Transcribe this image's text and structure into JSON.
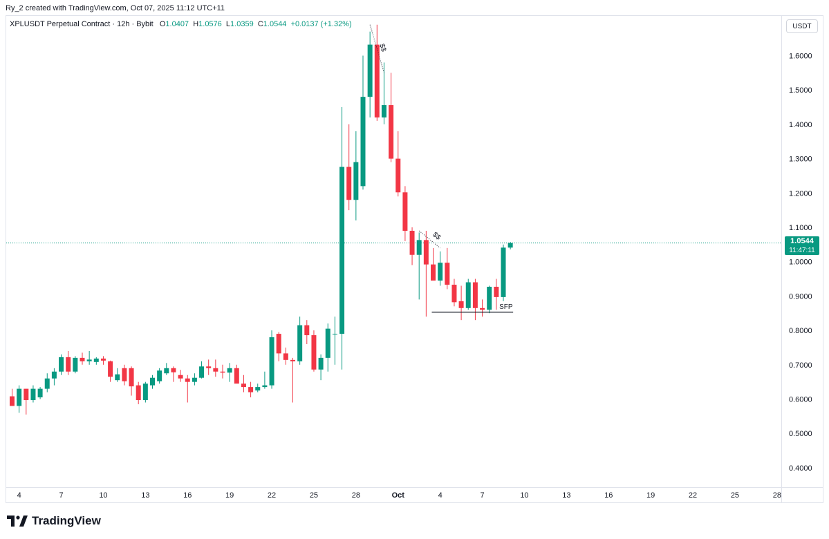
{
  "caption": "Ry_2 created with TradingView.com, Oct 07, 2025 11:12 UTC+11",
  "legend": {
    "symbol": "XPLUSDT Perpetual Contract · 12h · Bybit",
    "o_label": "O",
    "o_value": "1.0407",
    "h_label": "H",
    "h_value": "1.0576",
    "l_label": "L",
    "l_value": "1.0359",
    "c_label": "C",
    "c_value": "1.0544",
    "change": "+0.0137 (+1.32%)"
  },
  "currency": "USDT",
  "price_tag": {
    "price": "1.0544",
    "countdown": "11:47:11"
  },
  "brand": "TradingView",
  "colors": {
    "up": "#089981",
    "down": "#f23645",
    "text": "#131722",
    "grid": "#e0e3eb"
  },
  "chart_data": {
    "type": "candlestick",
    "y_axis": {
      "ticks": [
        0.4,
        0.5,
        0.6,
        0.7,
        0.8,
        0.9,
        1.0,
        1.1,
        1.2,
        1.3,
        1.4,
        1.5,
        1.6
      ],
      "tick_labels": [
        "0.4000",
        "0.5000",
        "0.6000",
        "0.7000",
        "0.8000",
        "0.9000",
        "1.0000",
        "1.1000",
        "1.2000",
        "1.3000",
        "1.4000",
        "1.5000",
        "1.6000"
      ],
      "range": [
        0.36,
        1.7
      ]
    },
    "x_axis": {
      "tick_labels": [
        "4",
        "7",
        "10",
        "13",
        "16",
        "19",
        "22",
        "25",
        "28",
        "Oct",
        "4",
        "7",
        "10",
        "13",
        "16",
        "19",
        "22",
        "25",
        "28"
      ],
      "tick_positions": [
        1,
        7,
        13,
        19,
        25,
        31,
        37,
        43,
        49,
        55,
        61,
        67,
        73,
        79,
        85,
        91,
        97,
        103,
        109
      ]
    },
    "last_price": 1.0544,
    "candles": [
      {
        "o": 0.608,
        "h": 0.63,
        "l": 0.58,
        "c": 0.58
      },
      {
        "o": 0.58,
        "h": 0.64,
        "l": 0.56,
        "c": 0.63
      },
      {
        "o": 0.63,
        "h": 0.63,
        "l": 0.555,
        "c": 0.597
      },
      {
        "o": 0.597,
        "h": 0.64,
        "l": 0.59,
        "c": 0.63
      },
      {
        "o": 0.605,
        "h": 0.635,
        "l": 0.6,
        "c": 0.63
      },
      {
        "o": 0.63,
        "h": 0.675,
        "l": 0.62,
        "c": 0.66
      },
      {
        "o": 0.66,
        "h": 0.69,
        "l": 0.64,
        "c": 0.68
      },
      {
        "o": 0.68,
        "h": 0.73,
        "l": 0.67,
        "c": 0.722
      },
      {
        "o": 0.722,
        "h": 0.74,
        "l": 0.67,
        "c": 0.68
      },
      {
        "o": 0.68,
        "h": 0.725,
        "l": 0.675,
        "c": 0.72
      },
      {
        "o": 0.72,
        "h": 0.735,
        "l": 0.7,
        "c": 0.71
      },
      {
        "o": 0.71,
        "h": 0.74,
        "l": 0.7,
        "c": 0.715
      },
      {
        "o": 0.708,
        "h": 0.722,
        "l": 0.7,
        "c": 0.718
      },
      {
        "o": 0.718,
        "h": 0.725,
        "l": 0.7,
        "c": 0.712
      },
      {
        "o": 0.71,
        "h": 0.712,
        "l": 0.65,
        "c": 0.665
      },
      {
        "o": 0.655,
        "h": 0.69,
        "l": 0.65,
        "c": 0.672
      },
      {
        "o": 0.69,
        "h": 0.7,
        "l": 0.64,
        "c": 0.652
      },
      {
        "o": 0.69,
        "h": 0.695,
        "l": 0.61,
        "c": 0.637
      },
      {
        "o": 0.64,
        "h": 0.65,
        "l": 0.585,
        "c": 0.597
      },
      {
        "o": 0.597,
        "h": 0.65,
        "l": 0.59,
        "c": 0.645
      },
      {
        "o": 0.64,
        "h": 0.67,
        "l": 0.63,
        "c": 0.662
      },
      {
        "o": 0.652,
        "h": 0.69,
        "l": 0.645,
        "c": 0.683
      },
      {
        "o": 0.675,
        "h": 0.705,
        "l": 0.67,
        "c": 0.69
      },
      {
        "o": 0.69,
        "h": 0.695,
        "l": 0.65,
        "c": 0.678
      },
      {
        "o": 0.67,
        "h": 0.685,
        "l": 0.65,
        "c": 0.66
      },
      {
        "o": 0.66,
        "h": 0.67,
        "l": 0.59,
        "c": 0.65
      },
      {
        "o": 0.65,
        "h": 0.675,
        "l": 0.64,
        "c": 0.662
      },
      {
        "o": 0.662,
        "h": 0.71,
        "l": 0.66,
        "c": 0.695
      },
      {
        "o": 0.695,
        "h": 0.715,
        "l": 0.67,
        "c": 0.69
      },
      {
        "o": 0.69,
        "h": 0.715,
        "l": 0.665,
        "c": 0.68
      },
      {
        "o": 0.68,
        "h": 0.7,
        "l": 0.66,
        "c": 0.677
      },
      {
        "o": 0.677,
        "h": 0.705,
        "l": 0.65,
        "c": 0.69
      },
      {
        "o": 0.69,
        "h": 0.7,
        "l": 0.65,
        "c": 0.645
      },
      {
        "o": 0.645,
        "h": 0.67,
        "l": 0.62,
        "c": 0.635
      },
      {
        "o": 0.635,
        "h": 0.65,
        "l": 0.605,
        "c": 0.62
      },
      {
        "o": 0.625,
        "h": 0.645,
        "l": 0.62,
        "c": 0.635
      },
      {
        "o": 0.635,
        "h": 0.68,
        "l": 0.63,
        "c": 0.64
      },
      {
        "o": 0.64,
        "h": 0.8,
        "l": 0.63,
        "c": 0.78
      },
      {
        "o": 0.79,
        "h": 0.795,
        "l": 0.71,
        "c": 0.733
      },
      {
        "o": 0.733,
        "h": 0.75,
        "l": 0.7,
        "c": 0.714
      },
      {
        "o": 0.714,
        "h": 0.72,
        "l": 0.59,
        "c": 0.71
      },
      {
        "o": 0.71,
        "h": 0.84,
        "l": 0.7,
        "c": 0.815
      },
      {
        "o": 0.815,
        "h": 0.83,
        "l": 0.76,
        "c": 0.786
      },
      {
        "o": 0.786,
        "h": 0.8,
        "l": 0.68,
        "c": 0.686
      },
      {
        "o": 0.686,
        "h": 0.73,
        "l": 0.655,
        "c": 0.72
      },
      {
        "o": 0.72,
        "h": 0.82,
        "l": 0.68,
        "c": 0.805
      },
      {
        "o": 0.79,
        "h": 0.84,
        "l": 0.7,
        "c": 0.79
      },
      {
        "o": 0.79,
        "h": 1.45,
        "l": 0.686,
        "c": 1.276
      },
      {
        "o": 1.276,
        "h": 1.4,
        "l": 1.15,
        "c": 1.18
      },
      {
        "o": 1.18,
        "h": 1.38,
        "l": 1.12,
        "c": 1.29
      },
      {
        "o": 1.22,
        "h": 1.6,
        "l": 1.21,
        "c": 1.48
      },
      {
        "o": 1.48,
        "h": 1.67,
        "l": 1.42,
        "c": 1.632
      },
      {
        "o": 1.632,
        "h": 1.69,
        "l": 1.41,
        "c": 1.42
      },
      {
        "o": 1.42,
        "h": 1.58,
        "l": 1.4,
        "c": 1.456
      },
      {
        "o": 1.456,
        "h": 1.55,
        "l": 1.29,
        "c": 1.3
      },
      {
        "o": 1.3,
        "h": 1.38,
        "l": 1.19,
        "c": 1.202
      },
      {
        "o": 1.202,
        "h": 1.22,
        "l": 1.06,
        "c": 1.09
      },
      {
        "o": 1.09,
        "h": 1.1,
        "l": 0.99,
        "c": 1.02
      },
      {
        "o": 1.02,
        "h": 1.085,
        "l": 0.89,
        "c": 1.063
      },
      {
        "o": 1.063,
        "h": 1.09,
        "l": 0.84,
        "c": 0.992
      },
      {
        "o": 0.992,
        "h": 1.04,
        "l": 0.95,
        "c": 0.945
      },
      {
        "o": 0.945,
        "h": 1.03,
        "l": 0.93,
        "c": 0.997
      },
      {
        "o": 0.997,
        "h": 1.04,
        "l": 0.92,
        "c": 0.933
      },
      {
        "o": 0.933,
        "h": 0.95,
        "l": 0.87,
        "c": 0.882
      },
      {
        "o": 0.885,
        "h": 0.93,
        "l": 0.83,
        "c": 0.865
      },
      {
        "o": 0.865,
        "h": 0.95,
        "l": 0.86,
        "c": 0.94
      },
      {
        "o": 0.94,
        "h": 0.95,
        "l": 0.83,
        "c": 0.865
      },
      {
        "o": 0.865,
        "h": 0.89,
        "l": 0.84,
        "c": 0.86
      },
      {
        "o": 0.86,
        "h": 0.93,
        "l": 0.85,
        "c": 0.927
      },
      {
        "o": 0.927,
        "h": 0.95,
        "l": 0.86,
        "c": 0.897
      },
      {
        "o": 0.897,
        "h": 1.05,
        "l": 0.885,
        "c": 1.041
      },
      {
        "o": 1.041,
        "h": 1.0576,
        "l": 1.0359,
        "c": 1.0544
      }
    ],
    "annotations": [
      {
        "text": "$$",
        "type": "dotted-trendline",
        "from": {
          "candle": 51,
          "price": 1.69
        },
        "to": {
          "candle": 53,
          "price": 1.55
        }
      },
      {
        "text": "$$",
        "type": "dotted-trendline",
        "from": {
          "candle": 58,
          "price": 1.09
        },
        "to": {
          "candle": 61,
          "price": 1.04
        }
      },
      {
        "text": "SFP",
        "type": "horizontal-line",
        "price": 0.853,
        "from_candle": 60,
        "to_candle": 71
      }
    ]
  }
}
